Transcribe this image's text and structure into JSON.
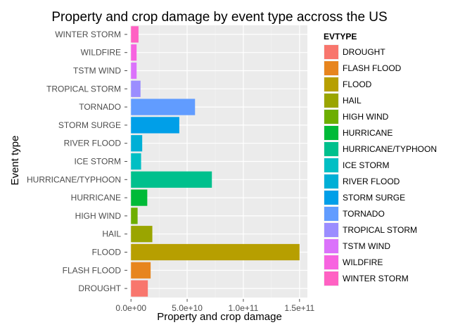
{
  "chart_data": {
    "type": "bar",
    "orientation": "horizontal",
    "title": "Property and crop damage by event type accross the US",
    "xlabel": "Property and crop damage",
    "ylabel": "Event type",
    "xlim": [
      -750000000.0,
      157000000000.0
    ],
    "x_ticks": [
      0,
      50000000000.0,
      100000000000.0,
      150000000000.0
    ],
    "x_tick_labels": [
      "0.0e+00",
      "5.0e+10",
      "1.0e+11",
      "1.5e+11"
    ],
    "grid": true,
    "legend_title": "EVTYPE",
    "legend_position": "right",
    "categories": [
      "DROUGHT",
      "FLASH FLOOD",
      "FLOOD",
      "HAIL",
      "HIGH WIND",
      "HURRICANE",
      "HURRICANE/TYPHOON",
      "ICE STORM",
      "RIVER FLOOD",
      "STORM SURGE",
      "TORNADO",
      "TROPICAL STORM",
      "TSTM WIND",
      "WILDFIRE",
      "WINTER STORM"
    ],
    "values": [
      15000000000.0,
      17500000000.0,
      150000000000.0,
      19000000000.0,
      5900000000.0,
      14500000000.0,
      72000000000.0,
      9000000000.0,
      10000000000.0,
      43000000000.0,
      57000000000.0,
      8500000000.0,
      5000000000.0,
      5000000000.0,
      6700000000.0
    ],
    "colors": [
      "#F8766D",
      "#E7851E",
      "#B79F00",
      "#9AA500",
      "#6DAE00",
      "#00BA38",
      "#00C08D",
      "#00BFC4",
      "#00AFD6",
      "#009FE8",
      "#619CFF",
      "#9B8DFF",
      "#DB72FB",
      "#F763E0",
      "#FF61C3"
    ]
  }
}
